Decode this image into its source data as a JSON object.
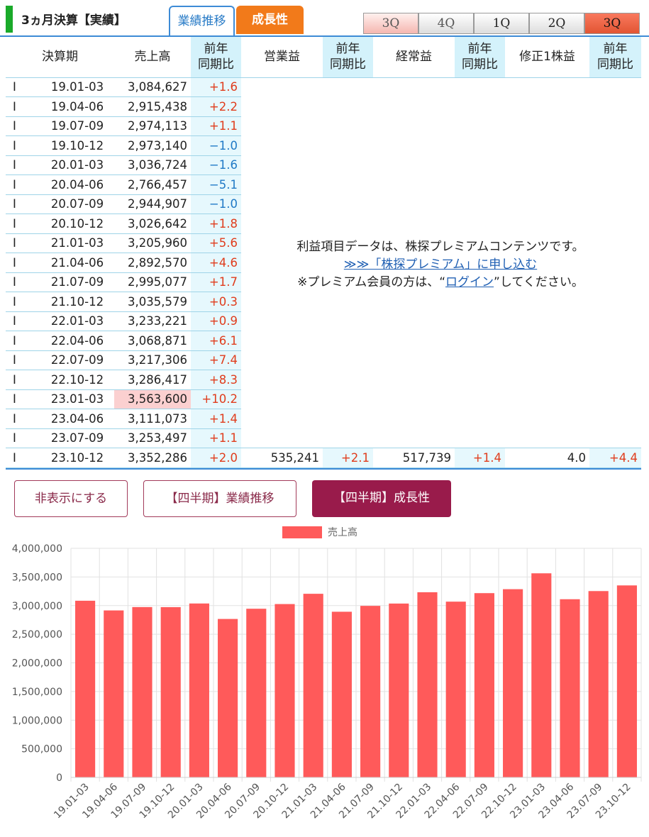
{
  "header": {
    "title": "3ヵ月決算【実績】",
    "tab_performance": "業績推移",
    "tab_growth": "成長性",
    "quarter_tabs": [
      "3Q",
      "4Q",
      "1Q",
      "2Q",
      "3Q"
    ]
  },
  "table": {
    "headers": [
      "決算期",
      "売上高",
      "前年\n同期比",
      "営業益",
      "前年\n同期比",
      "経常益",
      "前年\n同期比",
      "修正1株益",
      "前年\n同期比"
    ],
    "rows": [
      {
        "flag": "I",
        "period": "19.01-03",
        "sales": "3,084,627",
        "yoy": "+1.6"
      },
      {
        "flag": "I",
        "period": "19.04-06",
        "sales": "2,915,438",
        "yoy": "+2.2"
      },
      {
        "flag": "I",
        "period": "19.07-09",
        "sales": "2,974,113",
        "yoy": "+1.1"
      },
      {
        "flag": "I",
        "period": "19.10-12",
        "sales": "2,973,140",
        "yoy": "−1.0"
      },
      {
        "flag": "I",
        "period": "20.01-03",
        "sales": "3,036,724",
        "yoy": "−1.6"
      },
      {
        "flag": "I",
        "period": "20.04-06",
        "sales": "2,766,457",
        "yoy": "−5.1"
      },
      {
        "flag": "I",
        "period": "20.07-09",
        "sales": "2,944,907",
        "yoy": "−1.0"
      },
      {
        "flag": "I",
        "period": "20.10-12",
        "sales": "3,026,642",
        "yoy": "+1.8"
      },
      {
        "flag": "I",
        "period": "21.01-03",
        "sales": "3,205,960",
        "yoy": "+5.6"
      },
      {
        "flag": "I",
        "period": "21.04-06",
        "sales": "2,892,570",
        "yoy": "+4.6"
      },
      {
        "flag": "I",
        "period": "21.07-09",
        "sales": "2,995,077",
        "yoy": "+1.7"
      },
      {
        "flag": "I",
        "period": "21.10-12",
        "sales": "3,035,579",
        "yoy": "+0.3"
      },
      {
        "flag": "I",
        "period": "22.01-03",
        "sales": "3,233,221",
        "yoy": "+0.9"
      },
      {
        "flag": "I",
        "period": "22.04-06",
        "sales": "3,068,871",
        "yoy": "+6.1"
      },
      {
        "flag": "I",
        "period": "22.07-09",
        "sales": "3,217,306",
        "yoy": "+7.4"
      },
      {
        "flag": "I",
        "period": "22.10-12",
        "sales": "3,286,417",
        "yoy": "+8.3"
      },
      {
        "flag": "I",
        "period": "23.01-03",
        "sales": "3,563,600",
        "yoy": "+10.2"
      },
      {
        "flag": "I",
        "period": "23.04-06",
        "sales": "3,111,073",
        "yoy": "+1.4"
      },
      {
        "flag": "I",
        "period": "23.07-09",
        "sales": "3,253,497",
        "yoy": "+1.1"
      }
    ],
    "last_row": {
      "flag": "I",
      "period": "23.10-12",
      "sales": "3,352,286",
      "yoy": "+2.0",
      "op_profit": "535,241",
      "op_yoy": "+2.1",
      "ord_profit": "517,739",
      "ord_yoy": "+1.4",
      "eps": "4.0",
      "eps_yoy": "+4.4"
    }
  },
  "premium": {
    "line1": "利益項目データは、株探プレミアムコンテンツです。",
    "link1": "≫≫「株探プレミアム」に申し込む",
    "line3_prefix": "※プレミアム会員の方は、“",
    "login_link": "ログイン",
    "line3_suffix": "”してください。"
  },
  "buttons": {
    "hide": "非表示にする",
    "q_performance": "【四半期】業績推移",
    "q_growth": "【四半期】成長性"
  },
  "colors": {
    "bar": "#ff5a5a",
    "growth_tab": "#f27a1a",
    "active_button": "#991b4b",
    "positive": "#e03c1c",
    "negative": "#1f79c6"
  },
  "chart_data": {
    "type": "bar",
    "categories": [
      "19.01-03",
      "19.04-06",
      "19.07-09",
      "19.10-12",
      "20.01-03",
      "20.04-06",
      "20.07-09",
      "20.10-12",
      "21.01-03",
      "21.04-06",
      "21.07-09",
      "21.10-12",
      "22.01-03",
      "22.04-06",
      "22.07-09",
      "22.10-12",
      "23.01-03",
      "23.04-06",
      "23.07-09",
      "23.10-12"
    ],
    "series": [
      {
        "name": "売上高",
        "values": [
          3084627,
          2915438,
          2974113,
          2973140,
          3036724,
          2766457,
          2944907,
          3026642,
          3205960,
          2892570,
          2995077,
          3035579,
          3233221,
          3068871,
          3217306,
          3286417,
          3563600,
          3111073,
          3253497,
          3352286
        ]
      }
    ],
    "yticks": [
      "0",
      "500,000",
      "1,000,000",
      "1,500,000",
      "2,000,000",
      "2,500,000",
      "3,000,000",
      "3,500,000",
      "4,000,000"
    ],
    "ylim": [
      0,
      4000000
    ],
    "legend": "top",
    "grid": true
  }
}
